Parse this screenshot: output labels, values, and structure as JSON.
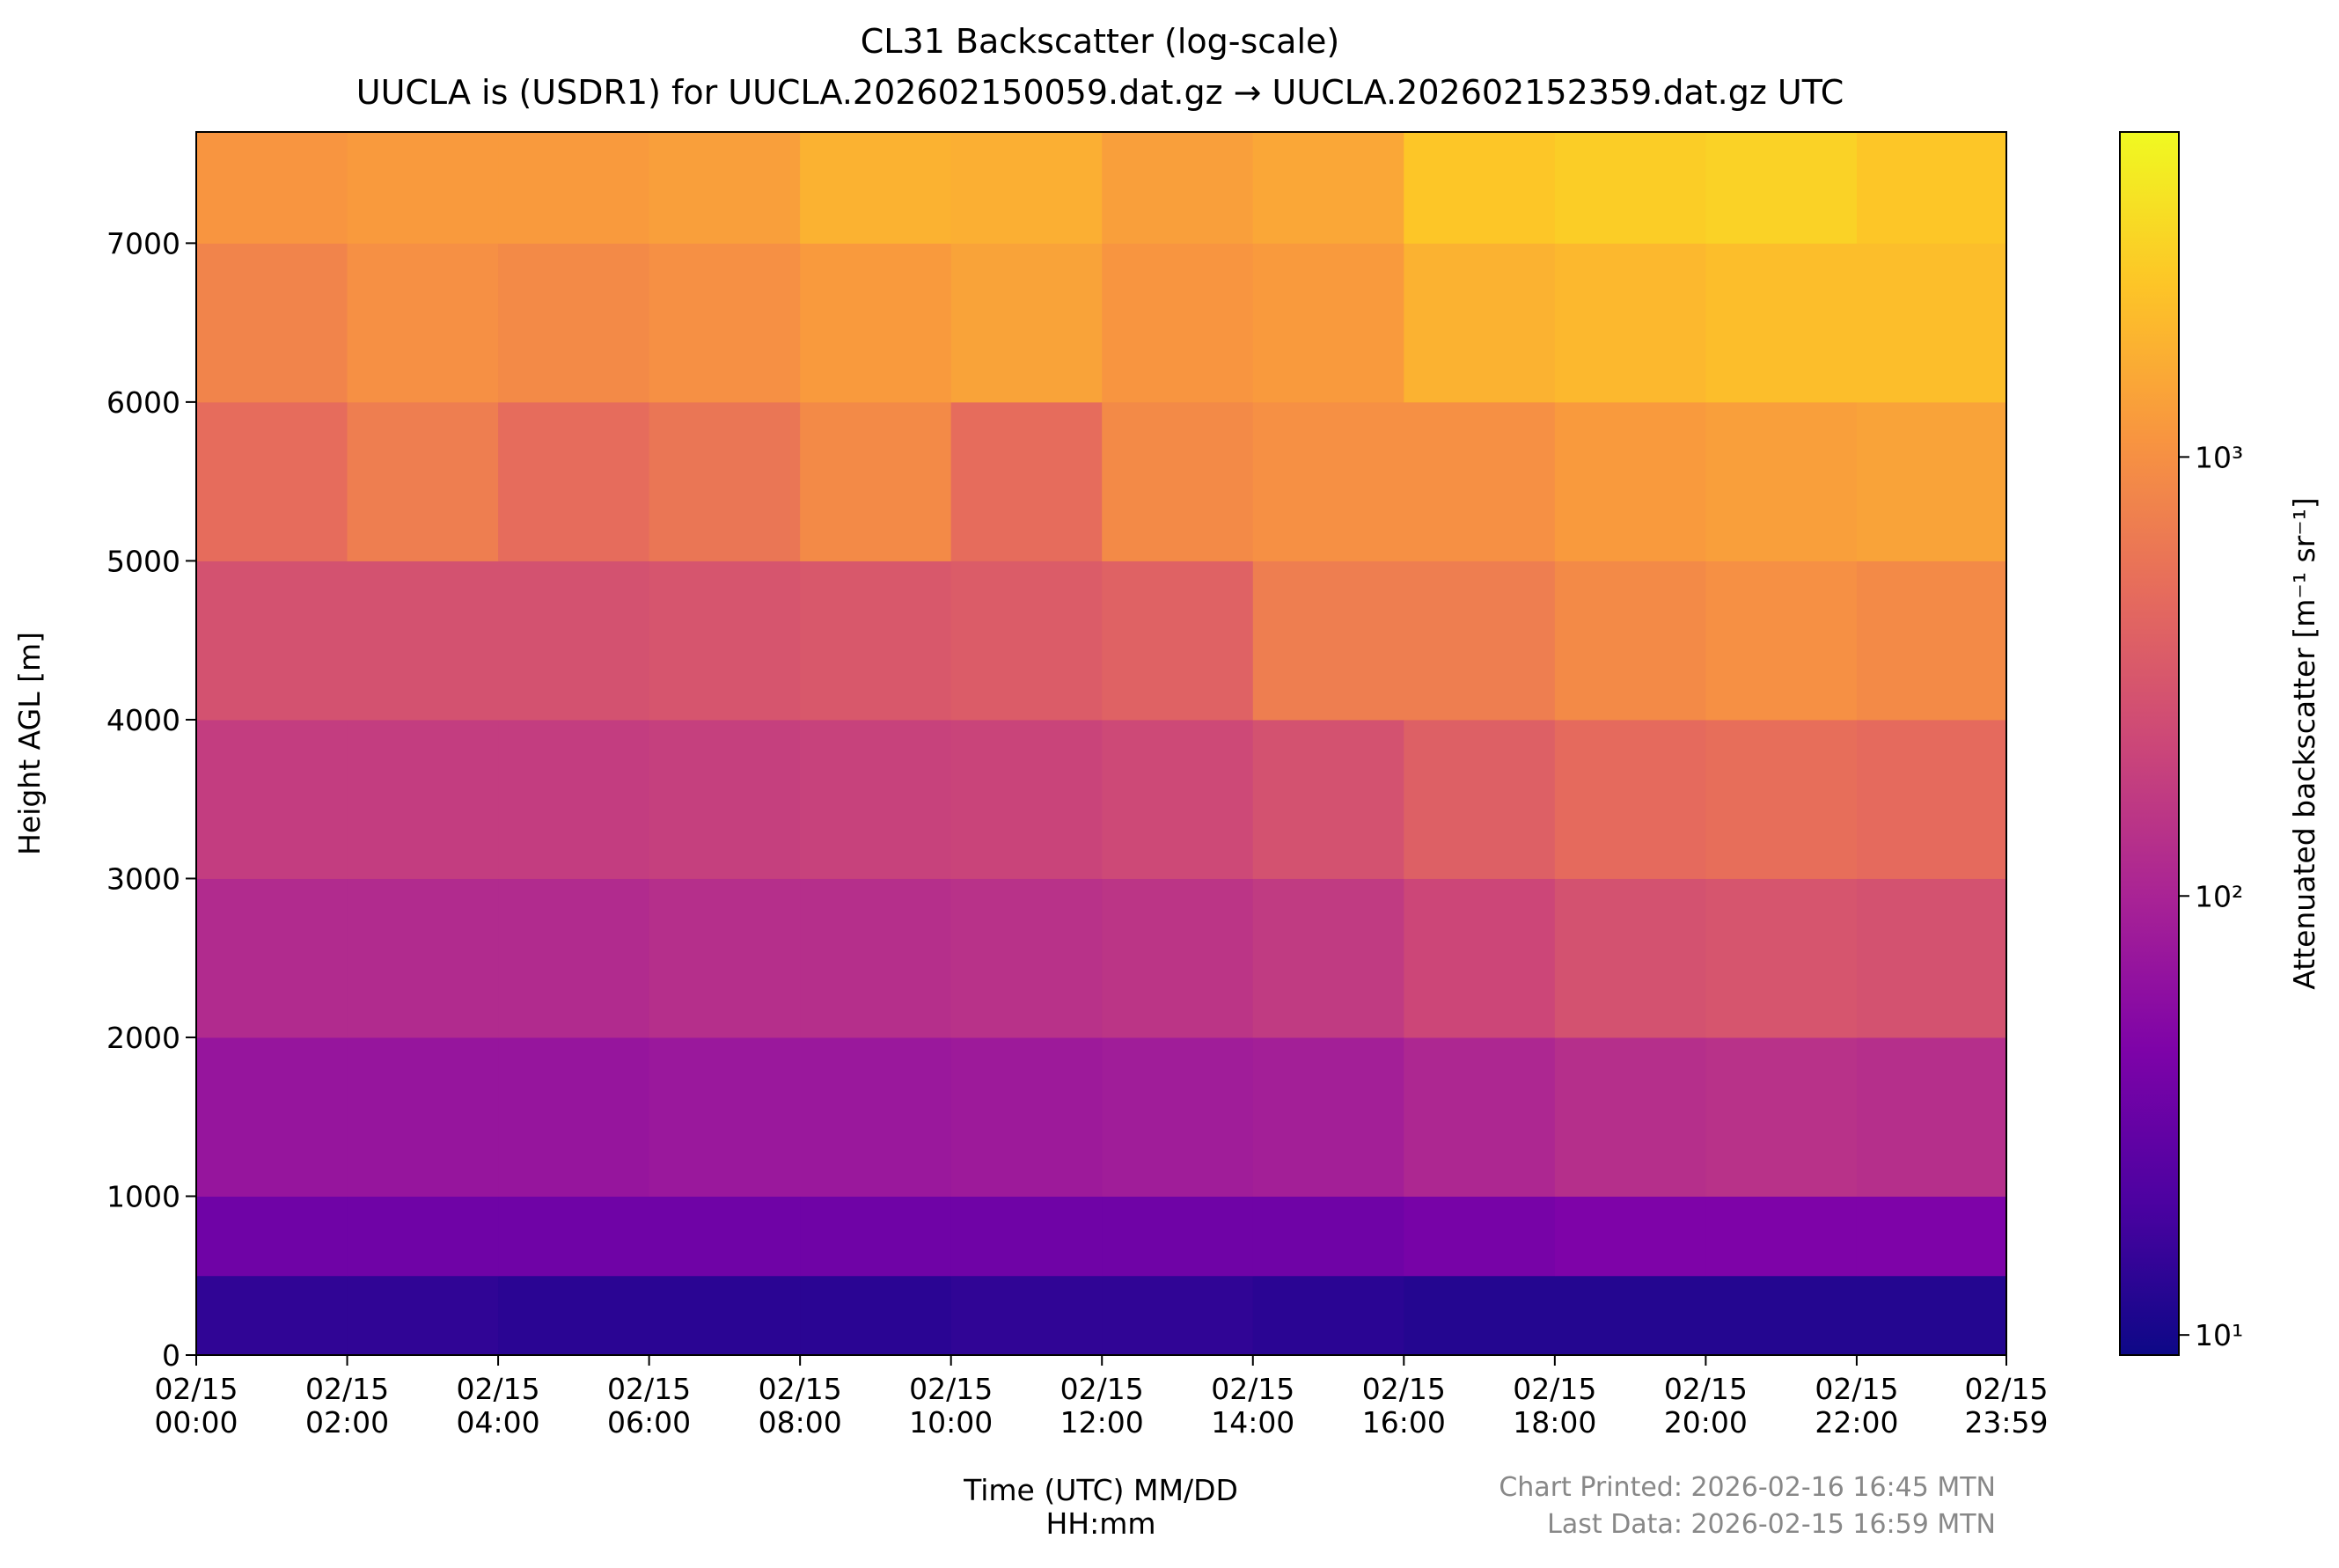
{
  "chart_data": {
    "type": "heatmap",
    "title": "CL31 Backscatter (log-scale)",
    "subtitle": "UUCLA is (USDR1) for UUCLA.202602150059.dat.gz → UUCLA.202602152359.dat.gz UTC",
    "x_label": "Time (UTC) MM/DD\nHH:mm",
    "y_label": "Height AGL [m]",
    "colorbar_label": "Attenuated backscatter [m⁻¹ sr⁻¹]",
    "colormap": "plasma",
    "color_scale": "log",
    "clim": [
      9,
      5500
    ],
    "cticks": [
      {
        "value": 10,
        "label": "10¹"
      },
      {
        "value": 100,
        "label": "10²"
      },
      {
        "value": 1000,
        "label": "10³"
      }
    ],
    "xlim": [
      0,
      23.983
    ],
    "xticks": [
      {
        "value": 0,
        "label": "02/15\n00:00"
      },
      {
        "value": 2,
        "label": "02/15\n02:00"
      },
      {
        "value": 4,
        "label": "02/15\n04:00"
      },
      {
        "value": 6,
        "label": "02/15\n06:00"
      },
      {
        "value": 8,
        "label": "02/15\n08:00"
      },
      {
        "value": 10,
        "label": "02/15\n10:00"
      },
      {
        "value": 12,
        "label": "02/15\n12:00"
      },
      {
        "value": 14,
        "label": "02/15\n14:00"
      },
      {
        "value": 16,
        "label": "02/15\n16:00"
      },
      {
        "value": 18,
        "label": "02/15\n18:00"
      },
      {
        "value": 20,
        "label": "02/15\n20:00"
      },
      {
        "value": 22,
        "label": "02/15\n22:00"
      },
      {
        "value": 23.983,
        "label": "02/15\n23:59"
      }
    ],
    "ylim": [
      0,
      7700
    ],
    "yticks": [
      0,
      1000,
      2000,
      3000,
      4000,
      5000,
      6000,
      7000
    ],
    "x_bins": [
      0,
      2,
      4,
      6,
      8,
      10,
      12,
      14,
      16,
      18,
      20,
      22,
      23.983
    ],
    "y_bins": [
      0,
      500,
      1000,
      2000,
      3000,
      4000,
      5000,
      6000,
      7000,
      7700
    ],
    "z": [
      [
        14,
        14,
        13,
        13,
        13,
        14,
        14,
        13,
        12,
        12,
        12,
        12
      ],
      [
        35,
        35,
        35,
        35,
        35,
        35,
        35,
        35,
        40,
        45,
        45,
        45
      ],
      [
        70,
        70,
        70,
        75,
        75,
        80,
        85,
        90,
        110,
        130,
        140,
        130
      ],
      [
        120,
        120,
        120,
        130,
        130,
        140,
        150,
        170,
        220,
        280,
        300,
        280
      ],
      [
        180,
        180,
        180,
        190,
        200,
        210,
        230,
        280,
        380,
        480,
        520,
        480
      ],
      [
        280,
        280,
        280,
        300,
        320,
        350,
        400,
        700,
        700,
        900,
        1000,
        900
      ],
      [
        500,
        700,
        500,
        600,
        900,
        500,
        900,
        1000,
        1000,
        1200,
        1300,
        1400
      ],
      [
        800,
        1000,
        900,
        1000,
        1200,
        1400,
        1100,
        1200,
        1800,
        2000,
        2200,
        2200
      ],
      [
        1100,
        1200,
        1200,
        1300,
        1800,
        1700,
        1300,
        1500,
        2500,
        2800,
        3000,
        2500
      ]
    ],
    "footer": [
      "Chart Printed: 2026-02-16 16:45 MTN",
      "Last Data: 2026-02-15 16:59 MTN"
    ]
  }
}
